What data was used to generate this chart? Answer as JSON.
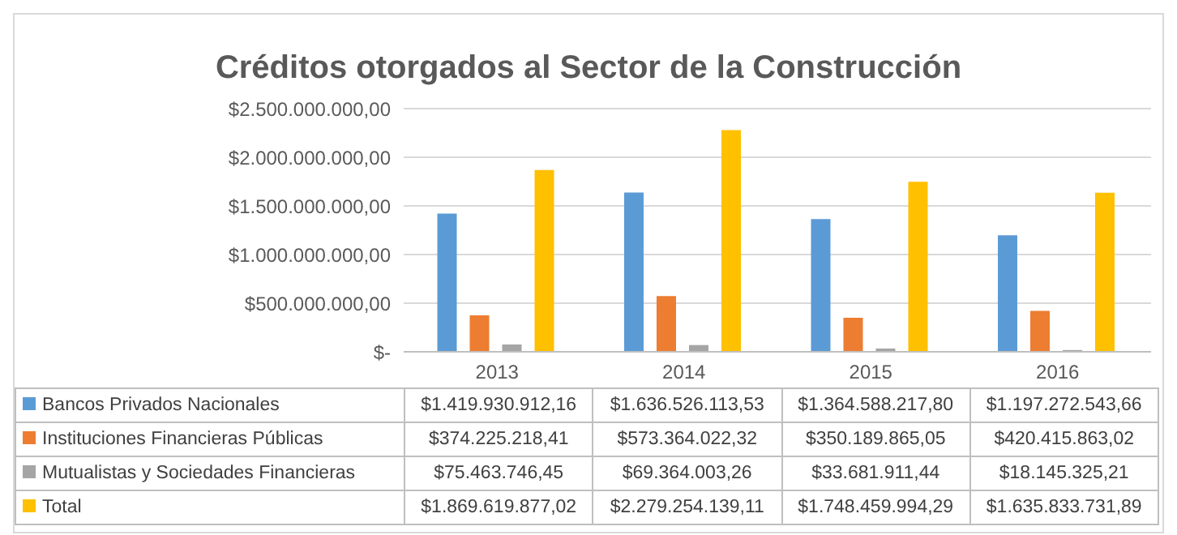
{
  "chart_data": {
    "type": "bar",
    "title": "Créditos otorgados al Sector de la Construcción",
    "categories": [
      "2013",
      "2014",
      "2015",
      "2016"
    ],
    "series": [
      {
        "name": "Bancos Privados Nacionales",
        "color": "#5b9bd5",
        "values": [
          1419930912.16,
          1636526113.53,
          1364588217.8,
          1197272543.66
        ],
        "value_labels": [
          "$1.419.930.912,16",
          "$1.636.526.113,53",
          "$1.364.588.217,80",
          "$1.197.272.543,66"
        ]
      },
      {
        "name": "Instituciones Financieras Públicas",
        "color": "#ed7d31",
        "values": [
          374225218.41,
          573364022.32,
          350189865.05,
          420415863.02
        ],
        "value_labels": [
          "$374.225.218,41",
          "$573.364.022,32",
          "$350.189.865,05",
          "$420.415.863,02"
        ]
      },
      {
        "name": "Mutualistas y Sociedades Financieras",
        "color": "#a5a5a5",
        "values": [
          75463746.45,
          69364003.26,
          33681911.44,
          18145325.21
        ],
        "value_labels": [
          "$75.463.746,45",
          "$69.364.003,26",
          "$33.681.911,44",
          "$18.145.325,21"
        ]
      },
      {
        "name": "Total",
        "color": "#ffc000",
        "values": [
          1869619877.02,
          2279254139.11,
          1748459994.29,
          1635833731.89
        ],
        "value_labels": [
          "$1.869.619.877,02",
          "$2.279.254.139,11",
          "$1.748.459.994,29",
          "$1.635.833.731,89"
        ]
      }
    ],
    "ylim": [
      0,
      2500000000
    ],
    "yticks": [
      {
        "value": 0,
        "label": "$-"
      },
      {
        "value": 500000000,
        "label": "$500.000.000,00"
      },
      {
        "value": 1000000000,
        "label": "$1.000.000.000,00"
      },
      {
        "value": 1500000000,
        "label": "$1.500.000.000,00"
      },
      {
        "value": 2000000000,
        "label": "$2.000.000.000,00"
      },
      {
        "value": 2500000000,
        "label": "$2.500.000.000,00"
      }
    ],
    "grid": "y",
    "legend": "bottom"
  }
}
